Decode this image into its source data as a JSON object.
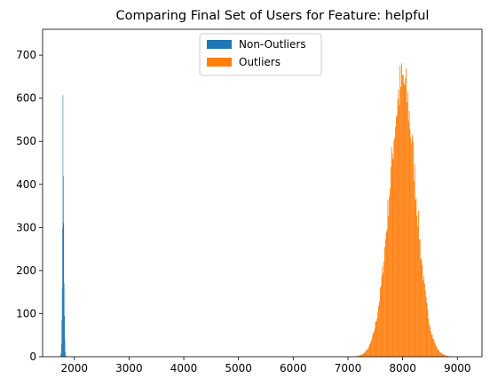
{
  "chart_data": {
    "type": "histogram",
    "title": "Comparing Final Set of Users for Feature: helpful",
    "xlabel": "",
    "ylabel": "",
    "xlim": [
      1420,
      9450
    ],
    "ylim": [
      0,
      760
    ],
    "x_ticks": [
      2000,
      3000,
      4000,
      5000,
      6000,
      7000,
      8000,
      9000
    ],
    "y_ticks": [
      0,
      100,
      200,
      300,
      400,
      500,
      600,
      700
    ],
    "grid": false,
    "legend_position": "upper center",
    "series": [
      {
        "name": "Non-Outliers",
        "color": "#1f77b4",
        "bins": [
          [
            1745,
            1752,
            3
          ],
          [
            1752,
            1759,
            8
          ],
          [
            1759,
            1766,
            30
          ],
          [
            1766,
            1773,
            85
          ],
          [
            1773,
            1780,
            160
          ],
          [
            1780,
            1787,
            300
          ],
          [
            1787,
            1794,
            607
          ],
          [
            1794,
            1801,
            420
          ],
          [
            1801,
            1808,
            310
          ],
          [
            1808,
            1815,
            170
          ],
          [
            1815,
            1822,
            95
          ],
          [
            1822,
            1829,
            40
          ],
          [
            1829,
            1836,
            12
          ],
          [
            1836,
            1843,
            3
          ]
        ]
      },
      {
        "name": "Outliers",
        "color": "#ff7f0e",
        "peak_x": 8000,
        "peak_value": 637,
        "std": 240,
        "range": [
          7050,
          9200
        ],
        "bin_width": 14
      }
    ]
  }
}
